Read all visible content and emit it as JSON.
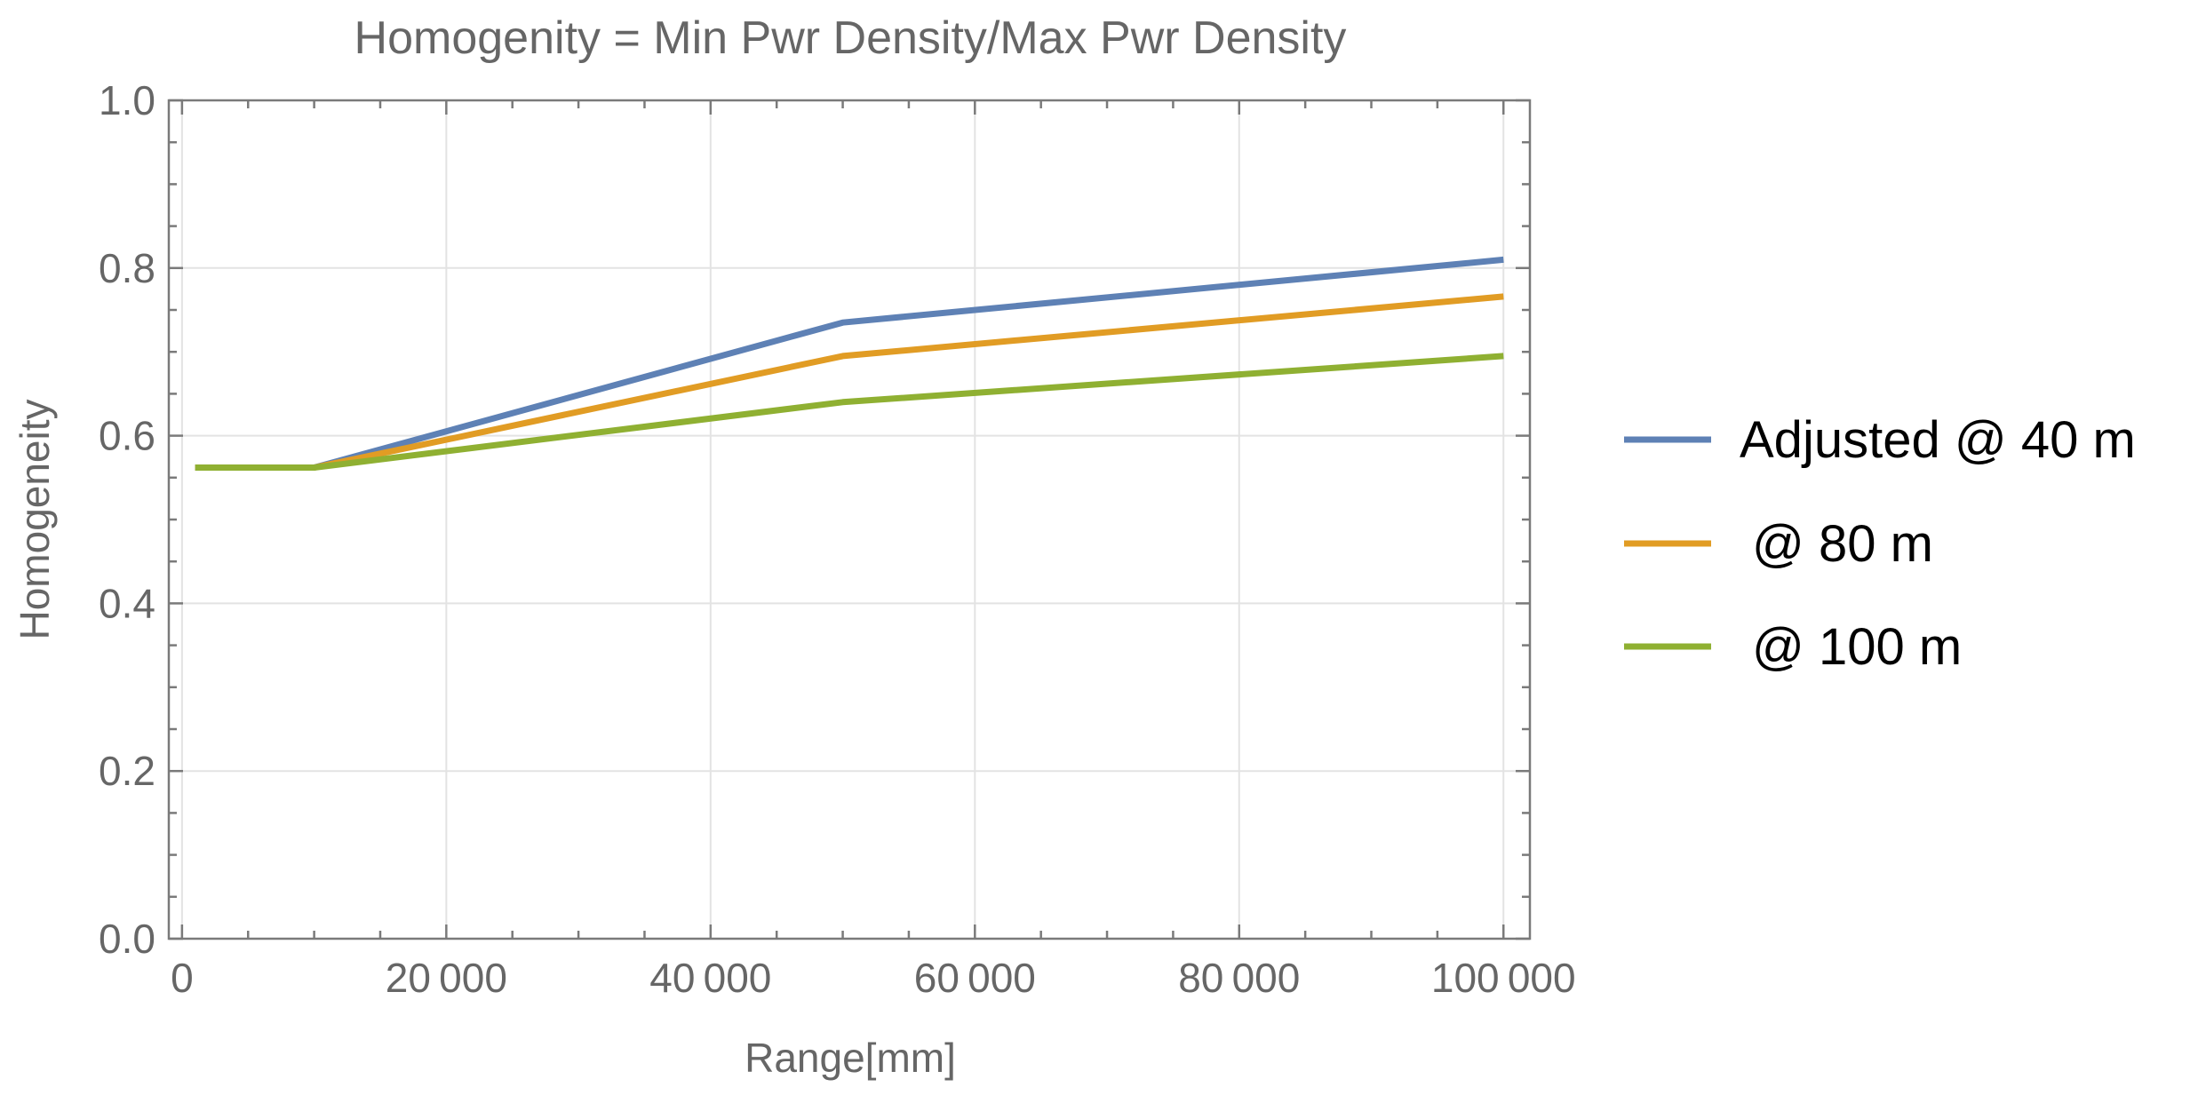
{
  "chart_data": {
    "type": "line",
    "title": "Homogenity = Min Pwr Density/Max Pwr Density",
    "xlabel": "Range[mm]",
    "ylabel": "Homogeneity",
    "xlim": [
      -1000,
      102000
    ],
    "ylim": [
      0.0,
      1.0
    ],
    "x_ticks": [
      0,
      20000,
      40000,
      60000,
      80000,
      100000
    ],
    "x_tick_labels": [
      "0",
      "20 000",
      "40 000",
      "60 000",
      "80 000",
      "100 000"
    ],
    "y_ticks": [
      0.0,
      0.2,
      0.4,
      0.6,
      0.8,
      1.0
    ],
    "y_tick_labels": [
      "0.0",
      "0.2",
      "0.4",
      "0.6",
      "0.8",
      "1.0"
    ],
    "grid": true,
    "legend_position": "right",
    "x": [
      1000,
      10000,
      50000,
      100000
    ],
    "series": [
      {
        "name": "Adjusted @ 40 m",
        "color": "#5e81b5",
        "values": [
          0.562,
          0.562,
          0.735,
          0.81
        ]
      },
      {
        "name": "@ 80 m",
        "color": "#e19c24",
        "values": [
          0.562,
          0.562,
          0.695,
          0.766
        ]
      },
      {
        "name": "@ 100 m",
        "color": "#8fb032",
        "values": [
          0.562,
          0.562,
          0.64,
          0.695
        ]
      }
    ]
  }
}
